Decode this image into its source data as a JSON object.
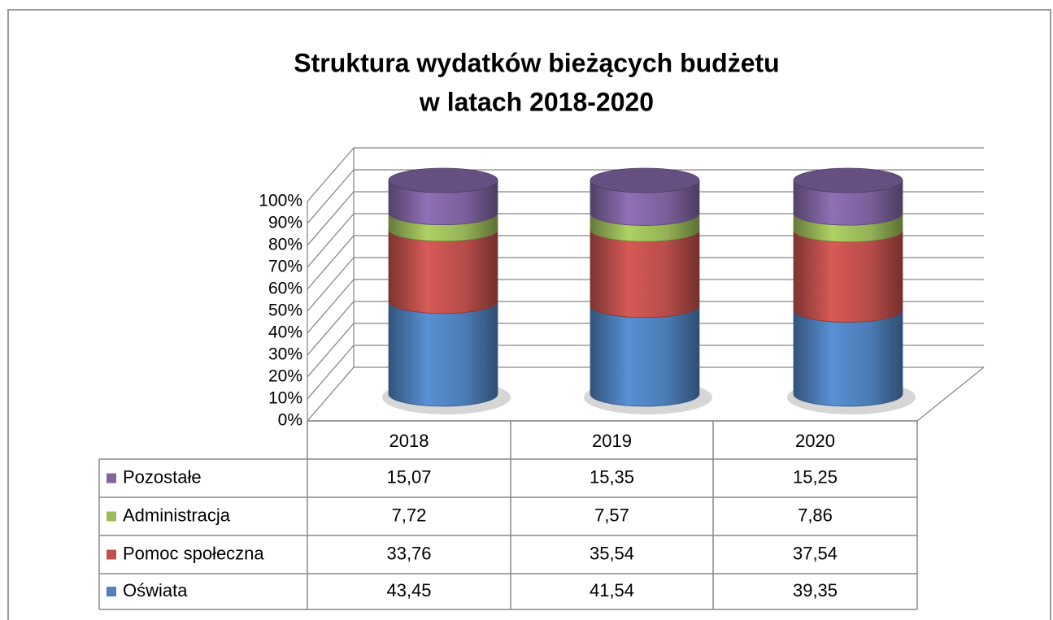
{
  "chart_data": {
    "type": "cylinder3d-stacked-percent",
    "title": [
      "Struktura wydatków bieżących budżetu",
      "w latach 2018-2020"
    ],
    "categories": [
      "2018",
      "2019",
      "2020"
    ],
    "series": [
      {
        "name": "Oświata",
        "color": "#4f81bd",
        "values": [
          43.45,
          41.54,
          39.35
        ],
        "value_labels": [
          "43,45",
          "41,54",
          "39,35"
        ]
      },
      {
        "name": "Pomoc społeczna",
        "color": "#c0504d",
        "values": [
          33.76,
          35.54,
          37.54
        ],
        "value_labels": [
          "33,76",
          "35,54",
          "37,54"
        ]
      },
      {
        "name": "Administracja",
        "color": "#9bbb59",
        "values": [
          7.72,
          7.57,
          7.86
        ],
        "value_labels": [
          "7,72",
          "7,57",
          "7,86"
        ]
      },
      {
        "name": "Pozostałe",
        "color": "#8064a2",
        "values": [
          15.07,
          15.35,
          15.25
        ],
        "value_labels": [
          "15,07",
          "15,35",
          "15,25"
        ]
      }
    ],
    "ylim": [
      0,
      100
    ],
    "yticks": [
      {
        "value": 0,
        "label": "0%"
      },
      {
        "value": 10,
        "label": "10%"
      },
      {
        "value": 20,
        "label": "20%"
      },
      {
        "value": 30,
        "label": "30%"
      },
      {
        "value": 40,
        "label": "40%"
      },
      {
        "value": 50,
        "label": "50%"
      },
      {
        "value": 60,
        "label": "60%"
      },
      {
        "value": 70,
        "label": "70%"
      },
      {
        "value": 80,
        "label": "80%"
      },
      {
        "value": 90,
        "label": "90%"
      },
      {
        "value": 100,
        "label": "100%"
      }
    ],
    "grid": true,
    "data_table": true
  }
}
